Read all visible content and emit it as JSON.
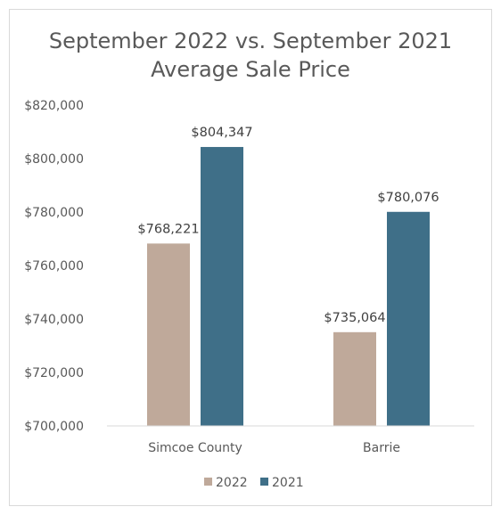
{
  "chart_data": {
    "type": "bar",
    "title_lines": [
      "September 2022 vs. September 2021",
      "Average Sale Price"
    ],
    "categories": [
      "Simcoe County",
      "Barrie"
    ],
    "series": [
      {
        "name": "2022",
        "color": "#BFA99A",
        "values": [
          768221,
          735064
        ],
        "labels": [
          "$768,221",
          "$735,064"
        ]
      },
      {
        "name": "2021",
        "color": "#3F6F88",
        "values": [
          804347,
          780076
        ],
        "labels": [
          "$804,347",
          "$780,076"
        ]
      }
    ],
    "ylim": [
      700000,
      820000
    ],
    "y_ticks": [
      700000,
      720000,
      740000,
      760000,
      780000,
      800000,
      820000
    ],
    "y_tick_labels": [
      "$700,000",
      "$720,000",
      "$740,000",
      "$760,000",
      "$780,000",
      "$800,000",
      "$820,000"
    ],
    "grid": false,
    "legend_position": "bottom",
    "colors": {
      "axis": "#d9d9d9",
      "text": "#595959"
    }
  }
}
